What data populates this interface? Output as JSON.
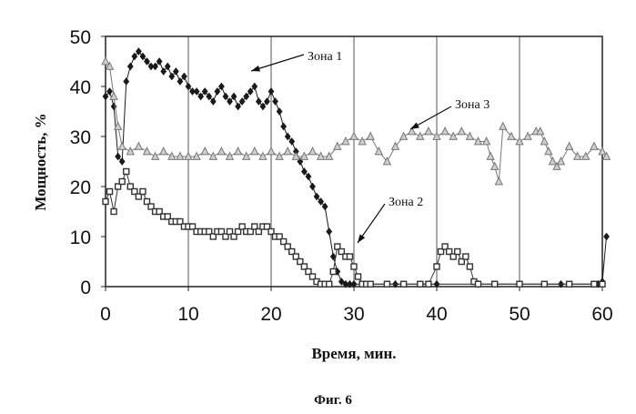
{
  "chart_data": {
    "type": "scatter",
    "title": "",
    "xlabel": "Время, мин.",
    "ylabel": "Мощность, %",
    "caption": "Фиг. 6",
    "xlim": [
      0,
      60
    ],
    "ylim": [
      0,
      50
    ],
    "xticks": [
      "0",
      "10",
      "20",
      "30",
      "40",
      "50",
      "60"
    ],
    "yticks": [
      "0",
      "10",
      "20",
      "30",
      "40",
      "50"
    ],
    "grid": "vertical",
    "legend": "none",
    "annotations": [
      {
        "text": "Зона 1",
        "series": 0
      },
      {
        "text": "Зона 2",
        "series": 1
      },
      {
        "text": "Зона 3",
        "series": 2
      }
    ],
    "series": [
      {
        "name": "Зона 1",
        "marker": "diamond",
        "color": "#1a1a1a",
        "x": [
          0,
          0.5,
          1,
          1.5,
          2,
          2.5,
          3,
          3.5,
          4,
          4.5,
          5,
          5.5,
          6,
          6.5,
          7,
          7.5,
          8,
          8.5,
          9,
          9.5,
          10,
          10.5,
          11,
          11.5,
          12,
          12.5,
          13,
          13.5,
          14,
          14.5,
          15,
          15.5,
          16,
          16.5,
          17,
          17.5,
          18,
          18.5,
          19,
          19.5,
          20,
          20.5,
          21,
          21.5,
          22,
          22.5,
          23,
          23.5,
          24,
          24.5,
          25,
          25.5,
          26,
          26.5,
          27,
          27.5,
          28,
          28.5,
          29,
          29.5,
          30,
          35,
          40,
          45,
          50,
          55,
          59.5,
          60,
          60.5
        ],
        "y": [
          38,
          39,
          36,
          26,
          25,
          41,
          44,
          46,
          47,
          46,
          45,
          44,
          44,
          45,
          43,
          44,
          42,
          43,
          41,
          42,
          40,
          39,
          39,
          38,
          39,
          38,
          37,
          39,
          40,
          38,
          37,
          38,
          36,
          37,
          38,
          39,
          40,
          37,
          36,
          37,
          39,
          37,
          35,
          32,
          30,
          29,
          27,
          25,
          23,
          22,
          20,
          18,
          17,
          16,
          11,
          6,
          3,
          1,
          0.5,
          0.5,
          0.5,
          0.5,
          0.5,
          0.5,
          0.5,
          0.5,
          0.5,
          1,
          10
        ]
      },
      {
        "name": "Зона 2",
        "marker": "square",
        "color": "#333333",
        "x": [
          0,
          0.5,
          1,
          1.5,
          2,
          2.5,
          3,
          3.5,
          4,
          4.5,
          5,
          5.5,
          6,
          6.5,
          7,
          7.5,
          8,
          8.5,
          9,
          9.5,
          10,
          10.5,
          11,
          11.5,
          12,
          12.5,
          13,
          13.5,
          14,
          14.5,
          15,
          15.5,
          16,
          16.5,
          17,
          17.5,
          18,
          18.5,
          19,
          19.5,
          20,
          20.5,
          21,
          21.5,
          22,
          22.5,
          23,
          23.5,
          24,
          24.5,
          25,
          25.5,
          26,
          26.5,
          27,
          27.5,
          28,
          28.5,
          29,
          29.5,
          30,
          30.5,
          31,
          31.5,
          32,
          34,
          36,
          38,
          39,
          40,
          40.5,
          41,
          41.5,
          42,
          42.5,
          43,
          43.5,
          44,
          44.5,
          45,
          47,
          50,
          53,
          56,
          59,
          60
        ],
        "y": [
          17,
          19,
          15,
          20,
          21,
          23,
          20,
          19,
          18,
          19,
          17,
          16,
          15,
          15,
          14,
          14,
          13,
          13,
          13,
          12,
          12,
          12,
          11,
          11,
          11,
          11,
          10,
          11,
          11,
          10,
          11,
          10,
          11,
          12,
          11,
          11,
          12,
          11,
          12,
          12,
          11,
          10,
          10,
          9,
          8,
          7,
          6,
          5,
          4,
          3,
          2,
          1,
          0.5,
          0.5,
          0.5,
          3,
          8,
          7,
          6,
          6,
          4,
          2,
          0.5,
          0.5,
          0.5,
          0.5,
          0.5,
          0.5,
          0.5,
          4,
          7,
          8,
          7,
          6,
          7,
          5,
          6,
          4,
          1,
          0.5,
          0.5,
          0.5,
          0.5,
          0.5,
          0.5,
          0.5
        ]
      },
      {
        "name": "Зона 3",
        "marker": "triangle",
        "color": "#777777",
        "x": [
          0,
          0.5,
          1,
          1.5,
          2,
          3,
          4,
          5,
          6,
          7,
          8,
          9,
          10,
          11,
          12,
          13,
          14,
          15,
          16,
          17,
          18,
          19,
          20,
          21,
          22,
          23,
          24,
          25,
          26,
          27,
          28,
          29,
          30,
          31,
          32,
          33,
          34,
          35,
          36,
          37,
          38,
          39,
          40,
          41,
          42,
          43,
          44,
          45,
          46,
          46.5,
          47,
          47.5,
          48,
          49,
          50,
          51,
          52,
          52.5,
          53,
          53.5,
          54,
          54.5,
          55,
          56,
          57,
          58,
          59,
          60,
          60.5
        ],
        "y": [
          45,
          44,
          38,
          32,
          28,
          27,
          28,
          27,
          26,
          27,
          26,
          26,
          26,
          26,
          27,
          26,
          27,
          26,
          27,
          26,
          27,
          26,
          27,
          26,
          27,
          26,
          26,
          27,
          26,
          26,
          28,
          29,
          30,
          29,
          30,
          27,
          25,
          28,
          30,
          31,
          30,
          31,
          30,
          31,
          30,
          31,
          30,
          29,
          29,
          26,
          24,
          21,
          32,
          30,
          29,
          30,
          31,
          31,
          29,
          27,
          25,
          24,
          25,
          28,
          26,
          26,
          28,
          27,
          26
        ]
      }
    ]
  }
}
